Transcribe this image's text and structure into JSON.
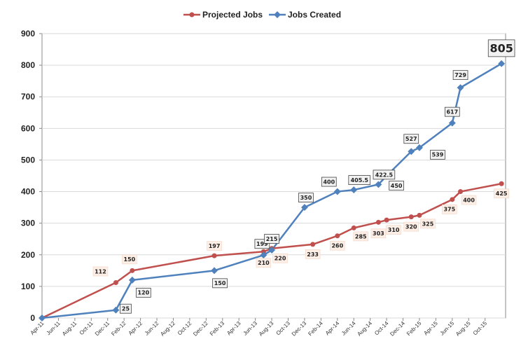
{
  "chart_data": {
    "type": "line",
    "title": "",
    "xlabel": "",
    "ylabel": "",
    "ylim": [
      0,
      900
    ],
    "yticks": [
      "0",
      "100",
      "200",
      "300",
      "400",
      "500",
      "600",
      "700",
      "800",
      "900"
    ],
    "xticks": [
      "Apr-11",
      "Jun-11",
      "Aug-11",
      "Oct-11",
      "Dec-11",
      "Feb-12",
      "Apr-12",
      "Jun-12",
      "Aug-12",
      "Oct-12",
      "Dec-12",
      "Feb-13",
      "Apr-13",
      "Jun-13",
      "Aug-13",
      "Oct-13",
      "Dec-13",
      "Feb-14",
      "Apr-14",
      "Jun-14",
      "Aug-14",
      "Oct-14",
      "Dec-14",
      "Feb-15",
      "Apr-15",
      "Jun-15",
      "Aug-15",
      "Oct-15"
    ],
    "grid": true,
    "legend": "top-center",
    "series": [
      {
        "name": "Projected Jobs",
        "color": "#c0504d",
        "marker": "circle",
        "points": [
          {
            "x": "Apr-11",
            "y": 0,
            "label": ""
          },
          {
            "x": "Jan-12",
            "y": 112,
            "label": "112"
          },
          {
            "x": "Mar-12",
            "y": 150,
            "label": "150"
          },
          {
            "x": "Jan-13",
            "y": 197,
            "label": "197"
          },
          {
            "x": "Jul-13",
            "y": 210,
            "label": "210"
          },
          {
            "x": "Aug-13",
            "y": 220,
            "label": "220"
          },
          {
            "x": "Jan-14",
            "y": 233,
            "label": "233"
          },
          {
            "x": "Apr-14",
            "y": 260,
            "label": "260"
          },
          {
            "x": "Jun-14",
            "y": 285,
            "label": "285"
          },
          {
            "x": "Sep-14",
            "y": 303,
            "label": "303"
          },
          {
            "x": "Oct-14",
            "y": 310,
            "label": "310"
          },
          {
            "x": "Jan-15",
            "y": 320,
            "label": "320"
          },
          {
            "x": "Feb-15",
            "y": 325,
            "label": "325"
          },
          {
            "x": "Jun-15",
            "y": 375,
            "label": "375"
          },
          {
            "x": "Jul-15",
            "y": 400,
            "label": "400"
          },
          {
            "x": "Dec-15",
            "y": 425,
            "label": "425"
          }
        ]
      },
      {
        "name": "Jobs Created",
        "color": "#4f81bd",
        "marker": "diamond",
        "points": [
          {
            "x": "Apr-11",
            "y": 0,
            "label": ""
          },
          {
            "x": "Jan-12",
            "y": 25,
            "label": "25"
          },
          {
            "x": "Mar-12",
            "y": 120,
            "label": "120"
          },
          {
            "x": "Jan-13",
            "y": 150,
            "label": "150"
          },
          {
            "x": "Jul-13",
            "y": 199,
            "label": "199"
          },
          {
            "x": "Aug-13",
            "y": 215,
            "label": "215"
          },
          {
            "x": "Dec-13",
            "y": 350,
            "label": "350"
          },
          {
            "x": "Apr-14",
            "y": 400,
            "label": "400"
          },
          {
            "x": "Jun-14",
            "y": 405.5,
            "label": "405.5"
          },
          {
            "x": "Sep-14",
            "y": 422.5,
            "label": "422.5"
          },
          {
            "x": "Oct-14",
            "y": 450,
            "label": "450"
          },
          {
            "x": "Jan-15",
            "y": 527,
            "label": "527"
          },
          {
            "x": "Feb-15",
            "y": 539,
            "label": "539"
          },
          {
            "x": "Jun-15",
            "y": 617,
            "label": "617"
          },
          {
            "x": "Jul-15",
            "y": 729,
            "label": "729"
          },
          {
            "x": "Dec-15",
            "y": 805,
            "label": "805"
          }
        ]
      }
    ]
  }
}
